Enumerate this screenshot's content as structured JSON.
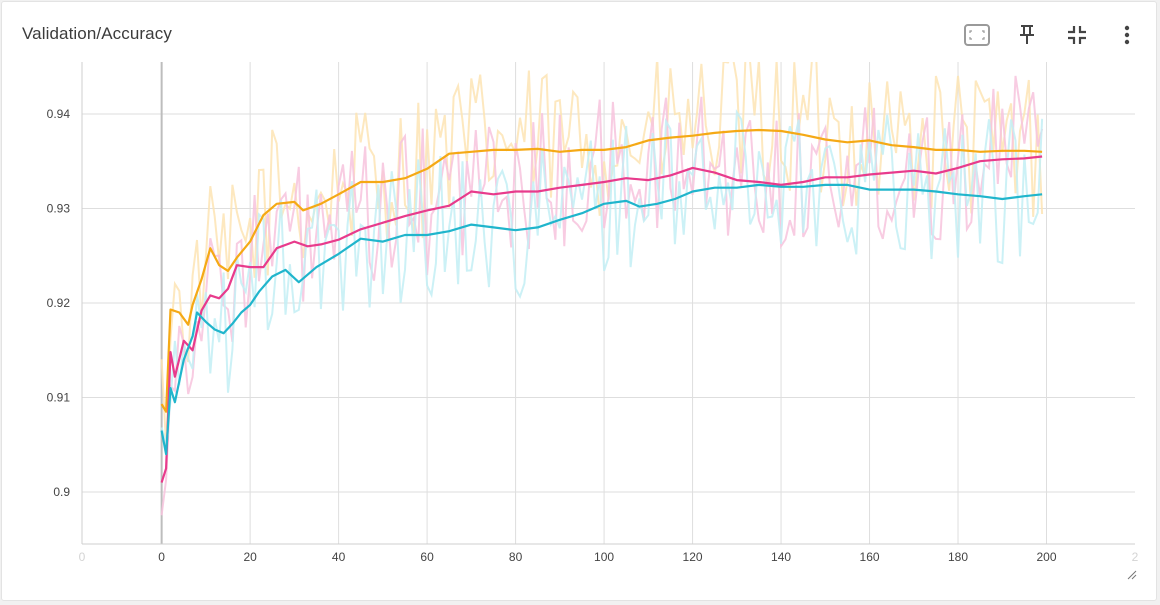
{
  "card": {
    "title": "Validation/Accuracy"
  },
  "toolbar": {
    "icons": [
      "fit-domain-icon",
      "pin-icon",
      "collapse-icon",
      "more-vert-icon"
    ]
  },
  "chart_data": {
    "type": "line",
    "title": "Validation/Accuracy",
    "xlabel": "",
    "ylabel": "",
    "xlim": [
      -18,
      220
    ],
    "ylim": [
      0.8945,
      0.9455
    ],
    "x_ticks": [
      0,
      20,
      40,
      60,
      80,
      100,
      120,
      140,
      160,
      180,
      200
    ],
    "x_ticks_faint": [
      -18,
      220
    ],
    "x_tick_labels_faint": [
      "0",
      "2"
    ],
    "y_ticks": [
      0.9,
      0.91,
      0.92,
      0.93,
      0.94
    ],
    "y_tick_labels": [
      "0.9",
      "0.91",
      "0.92",
      "0.93",
      "0.94"
    ],
    "grid": true,
    "legend": "none",
    "series": [
      {
        "color": "#f5a915",
        "raw_color": "#fde4b4",
        "smoothed": [
          [
            0,
            0.9093
          ],
          [
            1,
            0.9085
          ],
          [
            2,
            0.9193
          ],
          [
            4,
            0.919
          ],
          [
            6,
            0.9177
          ],
          [
            7,
            0.9198
          ],
          [
            9,
            0.9225
          ],
          [
            11,
            0.9258
          ],
          [
            13,
            0.924
          ],
          [
            15,
            0.9234
          ],
          [
            17,
            0.9248
          ],
          [
            20,
            0.9265
          ],
          [
            23,
            0.9293
          ],
          [
            26,
            0.9305
          ],
          [
            30,
            0.9307
          ],
          [
            32,
            0.9298
          ],
          [
            36,
            0.9305
          ],
          [
            40,
            0.9315
          ],
          [
            45,
            0.9328
          ],
          [
            50,
            0.9328
          ],
          [
            55,
            0.9332
          ],
          [
            60,
            0.9342
          ],
          [
            65,
            0.9358
          ],
          [
            70,
            0.936
          ],
          [
            75,
            0.9362
          ],
          [
            80,
            0.9362
          ],
          [
            85,
            0.9363
          ],
          [
            90,
            0.936
          ],
          [
            95,
            0.9362
          ],
          [
            100,
            0.9362
          ],
          [
            105,
            0.9365
          ],
          [
            110,
            0.9372
          ],
          [
            115,
            0.9375
          ],
          [
            120,
            0.9377
          ],
          [
            125,
            0.938
          ],
          [
            130,
            0.9382
          ],
          [
            135,
            0.9383
          ],
          [
            140,
            0.9382
          ],
          [
            145,
            0.9378
          ],
          [
            150,
            0.9373
          ],
          [
            155,
            0.937
          ],
          [
            160,
            0.9372
          ],
          [
            165,
            0.9367
          ],
          [
            170,
            0.9365
          ],
          [
            175,
            0.9362
          ],
          [
            180,
            0.9362
          ],
          [
            185,
            0.936
          ],
          [
            190,
            0.9361
          ],
          [
            195,
            0.9361
          ],
          [
            199,
            0.936
          ]
        ]
      },
      {
        "color": "#e83b8c",
        "raw_color": "#f7c3dd",
        "smoothed": [
          [
            0,
            0.901
          ],
          [
            1,
            0.9025
          ],
          [
            2,
            0.9148
          ],
          [
            3,
            0.9122
          ],
          [
            5,
            0.916
          ],
          [
            7,
            0.915
          ],
          [
            9,
            0.9192
          ],
          [
            11,
            0.9208
          ],
          [
            13,
            0.9205
          ],
          [
            15,
            0.9215
          ],
          [
            17,
            0.924
          ],
          [
            20,
            0.9238
          ],
          [
            23,
            0.9238
          ],
          [
            26,
            0.9258
          ],
          [
            30,
            0.9265
          ],
          [
            33,
            0.926
          ],
          [
            36,
            0.9262
          ],
          [
            40,
            0.9267
          ],
          [
            45,
            0.9278
          ],
          [
            50,
            0.9285
          ],
          [
            55,
            0.9292
          ],
          [
            60,
            0.9298
          ],
          [
            65,
            0.9303
          ],
          [
            70,
            0.9318
          ],
          [
            75,
            0.9315
          ],
          [
            80,
            0.9318
          ],
          [
            85,
            0.9318
          ],
          [
            90,
            0.9322
          ],
          [
            95,
            0.9325
          ],
          [
            100,
            0.9328
          ],
          [
            105,
            0.9332
          ],
          [
            110,
            0.933
          ],
          [
            115,
            0.9335
          ],
          [
            120,
            0.9343
          ],
          [
            125,
            0.9338
          ],
          [
            130,
            0.933
          ],
          [
            135,
            0.9328
          ],
          [
            140,
            0.9325
          ],
          [
            145,
            0.9328
          ],
          [
            150,
            0.9333
          ],
          [
            155,
            0.9333
          ],
          [
            160,
            0.9336
          ],
          [
            165,
            0.9338
          ],
          [
            170,
            0.934
          ],
          [
            175,
            0.9337
          ],
          [
            180,
            0.9343
          ],
          [
            185,
            0.935
          ],
          [
            190,
            0.9352
          ],
          [
            195,
            0.9353
          ],
          [
            199,
            0.9355
          ]
        ]
      },
      {
        "color": "#20b5cc",
        "raw_color": "#c3eef5",
        "smoothed": [
          [
            0,
            0.9065
          ],
          [
            1,
            0.904
          ],
          [
            2,
            0.911
          ],
          [
            3,
            0.9095
          ],
          [
            5,
            0.914
          ],
          [
            7,
            0.9165
          ],
          [
            8,
            0.919
          ],
          [
            10,
            0.918
          ],
          [
            12,
            0.9172
          ],
          [
            14,
            0.9168
          ],
          [
            16,
            0.9178
          ],
          [
            18,
            0.919
          ],
          [
            20,
            0.9198
          ],
          [
            22,
            0.9212
          ],
          [
            25,
            0.9228
          ],
          [
            28,
            0.9235
          ],
          [
            31,
            0.9222
          ],
          [
            35,
            0.9238
          ],
          [
            40,
            0.9252
          ],
          [
            45,
            0.9268
          ],
          [
            50,
            0.9265
          ],
          [
            55,
            0.9272
          ],
          [
            60,
            0.9272
          ],
          [
            65,
            0.9276
          ],
          [
            70,
            0.9283
          ],
          [
            75,
            0.928
          ],
          [
            80,
            0.9277
          ],
          [
            85,
            0.928
          ],
          [
            90,
            0.9288
          ],
          [
            95,
            0.9295
          ],
          [
            100,
            0.9305
          ],
          [
            105,
            0.9308
          ],
          [
            108,
            0.9302
          ],
          [
            112,
            0.9305
          ],
          [
            116,
            0.931
          ],
          [
            120,
            0.9318
          ],
          [
            125,
            0.9322
          ],
          [
            130,
            0.9322
          ],
          [
            135,
            0.9325
          ],
          [
            140,
            0.9323
          ],
          [
            145,
            0.9323
          ],
          [
            150,
            0.9325
          ],
          [
            155,
            0.9325
          ],
          [
            160,
            0.932
          ],
          [
            165,
            0.932
          ],
          [
            170,
            0.932
          ],
          [
            175,
            0.9318
          ],
          [
            180,
            0.9315
          ],
          [
            185,
            0.9313
          ],
          [
            190,
            0.931
          ],
          [
            195,
            0.9313
          ],
          [
            199,
            0.9315
          ]
        ]
      }
    ]
  }
}
